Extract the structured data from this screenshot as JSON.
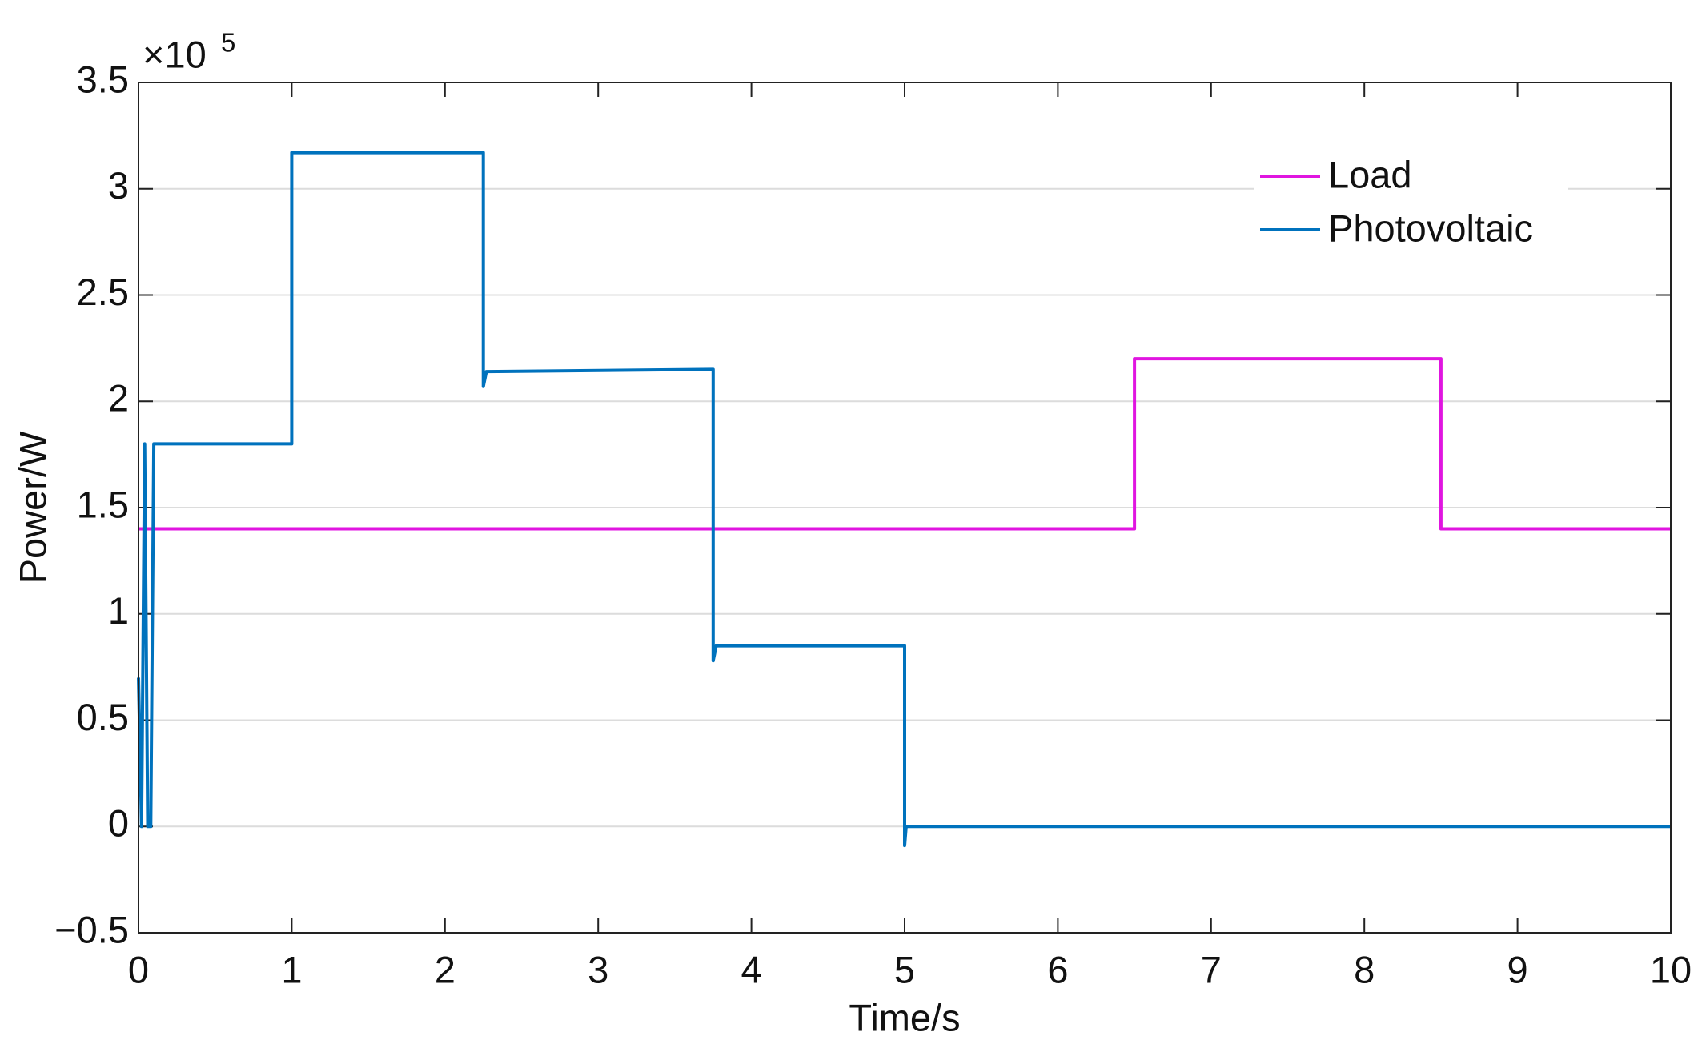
{
  "chart_data": {
    "type": "line",
    "y_scale_label": {
      "base": "×10",
      "exponent": "5"
    },
    "xlabel": "Time/s",
    "ylabel": "Power/W",
    "xlim": [
      0,
      10
    ],
    "xticks": [
      0,
      1,
      2,
      3,
      4,
      5,
      6,
      7,
      8,
      9,
      10
    ],
    "ylim": [
      -0.5,
      3.5
    ],
    "yticks": [
      {
        "value": -0.5,
        "label": "−0.5"
      },
      0,
      0.5,
      1,
      1.5,
      2,
      2.5,
      3,
      3.5
    ],
    "grid": true,
    "legend": "northeast",
    "series": [
      {
        "name": "Load",
        "color": "#e015e0",
        "x": [
          0,
          6.5,
          6.5,
          8.5,
          8.5,
          10
        ],
        "values": [
          1.4,
          1.4,
          2.2,
          2.2,
          1.4,
          1.4
        ]
      },
      {
        "name": "Photovoltaic",
        "color": "#0072bd",
        "x": [
          0,
          0.02,
          0.04,
          0.06,
          0.08,
          0.1,
          0.12,
          1.0,
          1.0,
          2.25,
          2.25,
          2.27,
          3.75,
          3.75,
          3.77,
          5.0,
          5.0,
          5.01,
          10
        ],
        "values": [
          0.7,
          0,
          1.8,
          0,
          0,
          1.8,
          1.8,
          1.8,
          3.17,
          3.17,
          2.07,
          2.14,
          2.15,
          0.78,
          0.85,
          0.85,
          -0.09,
          0,
          0
        ]
      }
    ]
  }
}
